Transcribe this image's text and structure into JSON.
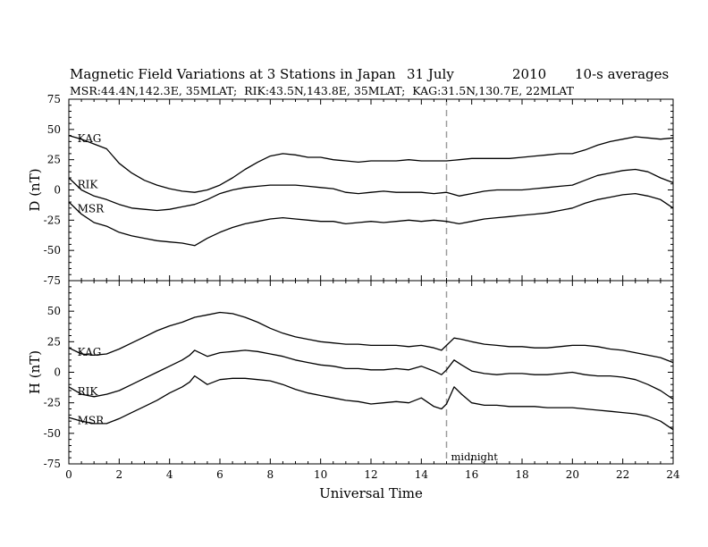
{
  "title": {
    "main": "Magnetic Field Variations at 3 Stations in Japan",
    "date": "31 July",
    "year": "2010",
    "averaging": "10-s averages",
    "stations": "MSR:44.4N,142.3E, 35MLAT;  RIK:43.5N,143.8E, 35MLAT;  KAG:31.5N,130.7E, 22MLAT"
  },
  "chart_data": [
    {
      "panel": "D",
      "type": "line",
      "ylabel": "D (nT)",
      "xlabel": "",
      "xlim": [
        0,
        24
      ],
      "ylim": [
        -75,
        75
      ],
      "yticks": [
        75,
        50,
        25,
        0,
        -25,
        -50,
        -75
      ],
      "xticks": [],
      "grid": false,
      "annotations": [
        {
          "text": "",
          "x": 15,
          "style": "dashed vertical line"
        }
      ],
      "series": [
        {
          "name": "KAG",
          "label_at_hour": 0.2,
          "x": [
            0,
            0.5,
            1,
            1.5,
            2,
            2.5,
            3,
            3.5,
            4,
            4.5,
            5,
            5.5,
            6,
            6.5,
            7,
            7.5,
            8,
            8.5,
            9,
            9.5,
            10,
            10.5,
            11,
            11.5,
            12,
            12.5,
            13,
            13.5,
            14,
            14.5,
            15,
            15.5,
            16,
            16.5,
            17,
            17.5,
            18,
            18.5,
            19,
            19.5,
            20,
            20.5,
            21,
            21.5,
            22,
            22.5,
            23,
            23.5,
            24
          ],
          "y": [
            45,
            42,
            38,
            34,
            22,
            14,
            8,
            4,
            1,
            -1,
            -2,
            0,
            4,
            10,
            17,
            23,
            28,
            30,
            29,
            27,
            27,
            25,
            24,
            23,
            24,
            24,
            24,
            25,
            24,
            24,
            24,
            25,
            26,
            26,
            26,
            26,
            27,
            28,
            29,
            30,
            30,
            33,
            37,
            40,
            42,
            44,
            43,
            42,
            43
          ]
        },
        {
          "name": "RIK",
          "label_at_hour": 0.2,
          "x": [
            0,
            0.5,
            1,
            1.5,
            2,
            2.5,
            3,
            3.5,
            4,
            4.5,
            5,
            5.5,
            6,
            6.5,
            7,
            7.5,
            8,
            8.5,
            9,
            9.5,
            10,
            10.5,
            11,
            11.5,
            12,
            12.5,
            13,
            13.5,
            14,
            14.5,
            15,
            15.5,
            16,
            16.5,
            17,
            17.5,
            18,
            18.5,
            19,
            19.5,
            20,
            20.5,
            21,
            21.5,
            22,
            22.5,
            23,
            23.5,
            24
          ],
          "y": [
            10,
            0,
            -5,
            -8,
            -12,
            -15,
            -16,
            -17,
            -16,
            -14,
            -12,
            -8,
            -3,
            0,
            2,
            3,
            4,
            4,
            4,
            3,
            2,
            1,
            -2,
            -3,
            -2,
            -1,
            -2,
            -2,
            -2,
            -3,
            -2,
            -5,
            -3,
            -1,
            0,
            0,
            0,
            1,
            2,
            3,
            4,
            8,
            12,
            14,
            16,
            17,
            15,
            10,
            6
          ]
        },
        {
          "name": "MSR",
          "label_at_hour": 0.2,
          "x": [
            0,
            0.5,
            1,
            1.5,
            2,
            2.5,
            3,
            3.5,
            4,
            4.5,
            5,
            5.5,
            6,
            6.5,
            7,
            7.5,
            8,
            8.5,
            9,
            9.5,
            10,
            10.5,
            11,
            11.5,
            12,
            12.5,
            13,
            13.5,
            14,
            14.5,
            15,
            15.5,
            16,
            16.5,
            17,
            17.5,
            18,
            18.5,
            19,
            19.5,
            20,
            20.5,
            21,
            21.5,
            22,
            22.5,
            23,
            23.5,
            24
          ],
          "y": [
            -10,
            -20,
            -27,
            -30,
            -35,
            -38,
            -40,
            -42,
            -43,
            -44,
            -46,
            -40,
            -35,
            -31,
            -28,
            -26,
            -24,
            -23,
            -24,
            -25,
            -26,
            -26,
            -28,
            -27,
            -26,
            -27,
            -26,
            -25,
            -26,
            -25,
            -26,
            -28,
            -26,
            -24,
            -23,
            -22,
            -21,
            -20,
            -19,
            -17,
            -15,
            -11,
            -8,
            -6,
            -4,
            -3,
            -5,
            -8,
            -15
          ]
        }
      ]
    },
    {
      "panel": "H",
      "type": "line",
      "ylabel": "H (nT)",
      "xlabel": "Universal Time",
      "xlim": [
        0,
        24
      ],
      "ylim": [
        -75,
        75
      ],
      "yticks": [
        75,
        50,
        25,
        0,
        -25,
        -50,
        -75
      ],
      "xticks": [
        0,
        2,
        4,
        6,
        8,
        10,
        12,
        14,
        16,
        18,
        20,
        22,
        24
      ],
      "grid": false,
      "annotations": [
        {
          "text": "midnight",
          "x": 15,
          "style": "dashed vertical line"
        }
      ],
      "series": [
        {
          "name": "KAG",
          "label_at_hour": 0.2,
          "x": [
            0,
            0.5,
            1,
            1.5,
            2,
            2.5,
            3,
            3.5,
            4,
            4.5,
            5,
            5.5,
            6,
            6.5,
            7,
            7.5,
            8,
            8.5,
            9,
            9.5,
            10,
            10.5,
            11,
            11.5,
            12,
            12.5,
            13,
            13.5,
            14,
            14.5,
            14.8,
            15,
            15.3,
            15.6,
            16,
            16.5,
            17,
            17.5,
            18,
            18.5,
            19,
            19.5,
            20,
            20.5,
            21,
            21.5,
            22,
            22.5,
            23,
            23.5,
            24
          ],
          "y": [
            20,
            15,
            14,
            15,
            19,
            24,
            29,
            34,
            38,
            41,
            45,
            47,
            49,
            48,
            45,
            41,
            36,
            32,
            29,
            27,
            25,
            24,
            23,
            23,
            22,
            22,
            22,
            21,
            22,
            20,
            18,
            22,
            28,
            27,
            25,
            23,
            22,
            21,
            21,
            20,
            20,
            21,
            22,
            22,
            21,
            19,
            18,
            16,
            14,
            12,
            8
          ]
        },
        {
          "name": "RIK",
          "label_at_hour": 0.2,
          "x": [
            0,
            0.5,
            1,
            1.5,
            2,
            2.5,
            3,
            3.5,
            4,
            4.5,
            4.8,
            5,
            5.5,
            6,
            6.5,
            7,
            7.5,
            8,
            8.5,
            9,
            9.5,
            10,
            10.5,
            11,
            11.5,
            12,
            12.5,
            13,
            13.5,
            14,
            14.5,
            14.8,
            15,
            15.3,
            15.6,
            16,
            16.5,
            17,
            17.5,
            18,
            18.5,
            19,
            19.5,
            20,
            20.5,
            21,
            21.5,
            22,
            22.5,
            23,
            23.5,
            24
          ],
          "y": [
            -12,
            -18,
            -20,
            -18,
            -15,
            -10,
            -5,
            0,
            5,
            10,
            14,
            18,
            13,
            16,
            17,
            18,
            17,
            15,
            13,
            10,
            8,
            6,
            5,
            3,
            3,
            2,
            2,
            3,
            2,
            5,
            1,
            -2,
            2,
            10,
            6,
            1,
            -1,
            -2,
            -1,
            -1,
            -2,
            -2,
            -1,
            0,
            -2,
            -3,
            -3,
            -4,
            -6,
            -10,
            -15,
            -22
          ]
        },
        {
          "name": "MSR",
          "label_at_hour": 0.2,
          "x": [
            0,
            0.5,
            1,
            1.5,
            2,
            2.5,
            3,
            3.5,
            4,
            4.5,
            4.8,
            5,
            5.5,
            6,
            6.5,
            7,
            7.5,
            8,
            8.5,
            9,
            9.5,
            10,
            10.5,
            11,
            11.5,
            12,
            12.5,
            13,
            13.5,
            14,
            14.5,
            14.8,
            15,
            15.3,
            15.6,
            16,
            16.5,
            17,
            17.5,
            18,
            18.5,
            19,
            19.5,
            20,
            20.5,
            21,
            21.5,
            22,
            22.5,
            23,
            23.5,
            24
          ],
          "y": [
            -37,
            -40,
            -42,
            -42,
            -38,
            -33,
            -28,
            -23,
            -17,
            -12,
            -8,
            -3,
            -10,
            -6,
            -5,
            -5,
            -6,
            -7,
            -10,
            -14,
            -17,
            -19,
            -21,
            -23,
            -24,
            -26,
            -25,
            -24,
            -25,
            -21,
            -28,
            -30,
            -26,
            -12,
            -18,
            -25,
            -27,
            -27,
            -28,
            -28,
            -28,
            -29,
            -29,
            -29,
            -30,
            -31,
            -32,
            -33,
            -34,
            -36,
            -40,
            -47
          ]
        }
      ]
    }
  ]
}
